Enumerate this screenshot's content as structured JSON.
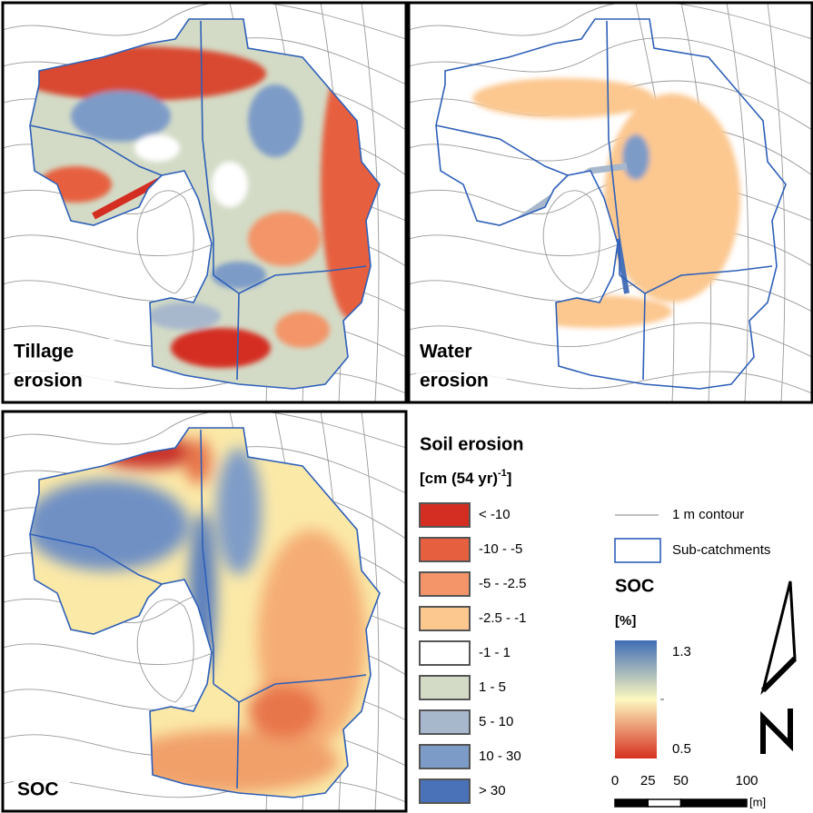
{
  "panels": [
    {
      "label_lines": [
        "Tillage",
        "erosion"
      ]
    },
    {
      "label_lines": [
        "Water",
        "erosion"
      ]
    },
    {
      "label_lines": [
        "SOC"
      ]
    }
  ],
  "erosion_legend": {
    "title": "Soil erosion",
    "unit": "[cm (54 yr)",
    "unit_superscript": "-1",
    "unit_close": "]",
    "classes": [
      {
        "label": "< -10",
        "color": "#d42e22"
      },
      {
        "label": "-10 - -5",
        "color": "#e6603f"
      },
      {
        "label": "-5 - -2.5",
        "color": "#f39569"
      },
      {
        "label": "-2.5 - -1",
        "color": "#fcc890"
      },
      {
        "label": "-1 - 1",
        "color": "#ffffff"
      },
      {
        "label": "1 - 5",
        "color": "#d3dbc6"
      },
      {
        "label": "5 - 10",
        "color": "#a8b8cc"
      },
      {
        "label": "10 - 30",
        "color": "#7d9bc7"
      },
      {
        "label": "> 30",
        "color": "#4a72b8"
      }
    ]
  },
  "line_legend": {
    "contour": "1 m contour",
    "subcatchments": "Sub-catchments"
  },
  "soc_legend": {
    "title": "SOC",
    "unit": "[%]",
    "max": "1.3",
    "min": "0.5",
    "colors": [
      "#3f6db5",
      "#fdf8c0",
      "#d7301f"
    ]
  },
  "scale_bar": {
    "ticks": [
      0,
      25,
      50,
      100
    ],
    "unit": "[m]"
  }
}
